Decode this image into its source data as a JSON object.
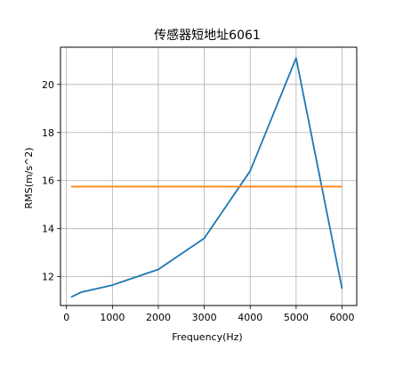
{
  "chart_data": {
    "type": "line",
    "title": "传感器短地址6061",
    "xlabel": "Frequency(Hz)",
    "ylabel": "RMS(m/s^2)",
    "xlim": [
      -130,
      6320
    ],
    "ylim": [
      10.8,
      21.55
    ],
    "xticks": [
      0,
      1000,
      2000,
      3000,
      4000,
      5000,
      6000
    ],
    "yticks": [
      12,
      14,
      16,
      18,
      20
    ],
    "grid": true,
    "series": [
      {
        "color": "#1f77b4",
        "x": [
          100,
          315,
          1000,
          2000,
          3000,
          4000,
          5000,
          6000
        ],
        "y": [
          11.15,
          11.35,
          11.65,
          12.3,
          13.6,
          16.4,
          21.1,
          11.5
        ]
      },
      {
        "color": "#ff7f0e",
        "x": [
          100,
          6000
        ],
        "y": [
          15.75,
          15.75
        ]
      }
    ]
  }
}
